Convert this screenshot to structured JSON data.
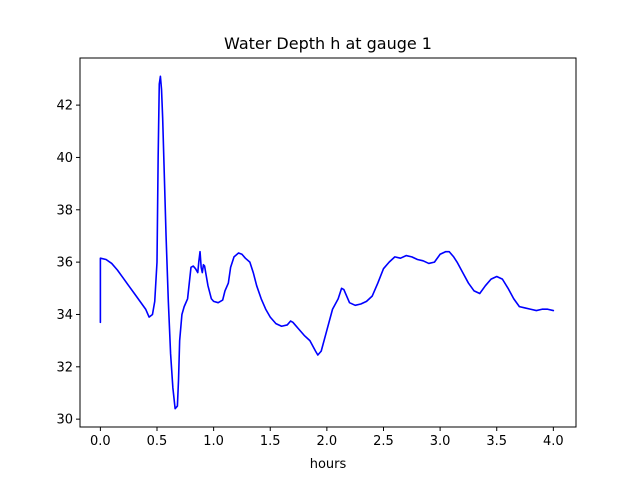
{
  "chart_data": {
    "type": "line",
    "title": "Water Depth h at gauge 1",
    "xlabel": "hours",
    "ylabel": "",
    "xlim": [
      -0.18,
      4.2
    ],
    "ylim": [
      29.7,
      43.8
    ],
    "xticks": [
      0.0,
      0.5,
      1.0,
      1.5,
      2.0,
      2.5,
      3.0,
      3.5,
      4.0
    ],
    "xtick_labels": [
      "0.0",
      "0.5",
      "1.0",
      "1.5",
      "2.0",
      "2.5",
      "3.0",
      "3.5",
      "4.0"
    ],
    "yticks": [
      30,
      32,
      34,
      36,
      38,
      40,
      42
    ],
    "ytick_labels": [
      "30",
      "32",
      "34",
      "36",
      "38",
      "40",
      "42"
    ],
    "grid": false,
    "series": [
      {
        "color": "#0000ff",
        "x": [
          0.0,
          0.0,
          0.05,
          0.1,
          0.15,
          0.2,
          0.25,
          0.3,
          0.35,
          0.4,
          0.43,
          0.46,
          0.48,
          0.5,
          0.51,
          0.52,
          0.53,
          0.54,
          0.55,
          0.56,
          0.58,
          0.6,
          0.62,
          0.64,
          0.66,
          0.68,
          0.69,
          0.7,
          0.72,
          0.74,
          0.77,
          0.8,
          0.82,
          0.84,
          0.86,
          0.87,
          0.88,
          0.89,
          0.9,
          0.91,
          0.92,
          0.93,
          0.95,
          0.98,
          1.0,
          1.04,
          1.08,
          1.1,
          1.13,
          1.15,
          1.18,
          1.22,
          1.25,
          1.28,
          1.32,
          1.35,
          1.38,
          1.42,
          1.46,
          1.5,
          1.55,
          1.6,
          1.65,
          1.68,
          1.7,
          1.72,
          1.75,
          1.8,
          1.85,
          1.9,
          1.92,
          1.95,
          2.0,
          2.05,
          2.1,
          2.13,
          2.15,
          2.2,
          2.25,
          2.3,
          2.35,
          2.4,
          2.45,
          2.5,
          2.55,
          2.6,
          2.65,
          2.7,
          2.75,
          2.8,
          2.85,
          2.9,
          2.95,
          3.0,
          3.05,
          3.08,
          3.12,
          3.15,
          3.2,
          3.25,
          3.3,
          3.35,
          3.4,
          3.45,
          3.5,
          3.55,
          3.6,
          3.65,
          3.7,
          3.75,
          3.8,
          3.85,
          3.9,
          3.95,
          4.0
        ],
        "y": [
          33.7,
          36.15,
          36.1,
          35.95,
          35.7,
          35.4,
          35.1,
          34.8,
          34.5,
          34.2,
          33.9,
          34.0,
          34.5,
          36.0,
          40.0,
          42.8,
          43.1,
          42.6,
          41.5,
          40.0,
          37.0,
          34.5,
          32.5,
          31.2,
          30.4,
          30.5,
          31.5,
          33.0,
          34.0,
          34.3,
          34.6,
          35.8,
          35.85,
          35.75,
          35.6,
          36.05,
          36.4,
          35.8,
          35.6,
          35.9,
          35.85,
          35.6,
          35.1,
          34.6,
          34.5,
          34.45,
          34.55,
          34.9,
          35.2,
          35.8,
          36.2,
          36.35,
          36.3,
          36.15,
          36.0,
          35.6,
          35.1,
          34.6,
          34.2,
          33.9,
          33.65,
          33.55,
          33.6,
          33.75,
          33.7,
          33.6,
          33.45,
          33.2,
          33.0,
          32.6,
          32.45,
          32.6,
          33.4,
          34.2,
          34.6,
          35.0,
          34.95,
          34.45,
          34.35,
          34.4,
          34.5,
          34.7,
          35.2,
          35.75,
          36.0,
          36.2,
          36.15,
          36.25,
          36.2,
          36.1,
          36.05,
          35.95,
          36.0,
          36.3,
          36.4,
          36.4,
          36.2,
          36.0,
          35.6,
          35.2,
          34.9,
          34.8,
          35.1,
          35.35,
          35.45,
          35.35,
          35.0,
          34.6,
          34.3,
          34.25,
          34.2,
          34.15,
          34.2,
          34.2,
          34.15
        ]
      }
    ]
  }
}
